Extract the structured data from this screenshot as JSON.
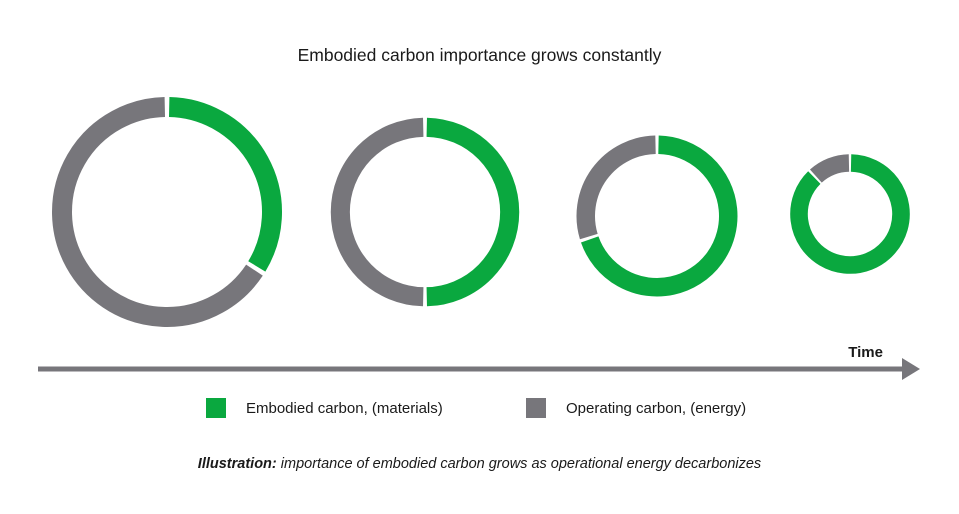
{
  "colors": {
    "embodied": "#0aa83f",
    "operating": "#77767b",
    "arrow": "#77767b",
    "text": "#1a1a1a"
  },
  "caption": {
    "lead": "Illustration:",
    "text": " importance of embodied carbon grows as operational energy decarbonizes"
  },
  "chart_data": {
    "type": "donut",
    "title": "Embodied carbon importance grows constantly",
    "xlabel": "Time",
    "ylabel": "",
    "legend": {
      "placement": "bottom",
      "entries": [
        {
          "name": "Embodied carbon, (materials)",
          "color": "#0aa83f"
        },
        {
          "name": "Operating carbon, (energy)",
          "color": "#77767b"
        }
      ]
    },
    "series_names": [
      "Embodied carbon, (materials)",
      "Operating carbon, (energy)"
    ],
    "relative_total_size": [
      1.0,
      0.82,
      0.7,
      0.52
    ],
    "donuts": [
      {
        "embodied_pct": 34,
        "operating_pct": 66
      },
      {
        "embodied_pct": 50,
        "operating_pct": 50
      },
      {
        "embodied_pct": 70,
        "operating_pct": 30
      },
      {
        "embodied_pct": 88,
        "operating_pct": 12
      }
    ]
  }
}
